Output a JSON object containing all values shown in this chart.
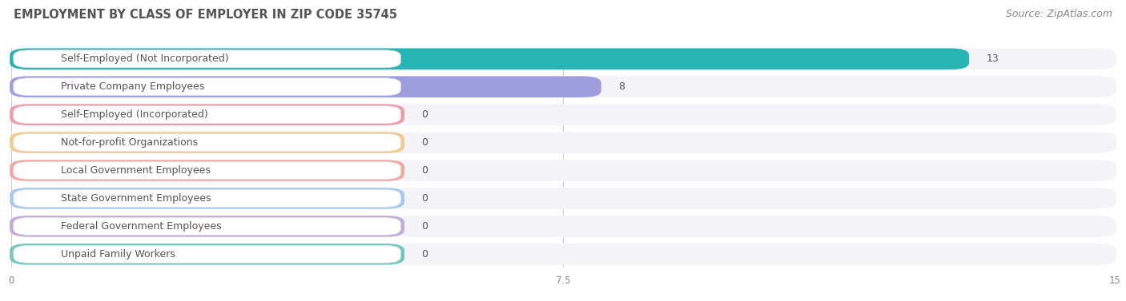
{
  "title": "EMPLOYMENT BY CLASS OF EMPLOYER IN ZIP CODE 35745",
  "source": "Source: ZipAtlas.com",
  "categories": [
    "Self-Employed (Not Incorporated)",
    "Private Company Employees",
    "Self-Employed (Incorporated)",
    "Not-for-profit Organizations",
    "Local Government Employees",
    "State Government Employees",
    "Federal Government Employees",
    "Unpaid Family Workers"
  ],
  "values": [
    13,
    8,
    0,
    0,
    0,
    0,
    0,
    0
  ],
  "bar_colors": [
    "#26b5b2",
    "#9e9edc",
    "#f09aaa",
    "#f5c98a",
    "#f0a8a0",
    "#a8c8f0",
    "#c4aad8",
    "#72c8c0"
  ],
  "bar_bg_color": "#e8e8f0",
  "xlim": [
    0,
    15
  ],
  "xticks": [
    0,
    7.5,
    15
  ],
  "title_fontsize": 10.5,
  "source_fontsize": 9,
  "label_fontsize": 9,
  "value_fontsize": 9,
  "background_color": "#ffffff",
  "grid_color": "#ccccdd",
  "row_bg": "#f4f4f8"
}
